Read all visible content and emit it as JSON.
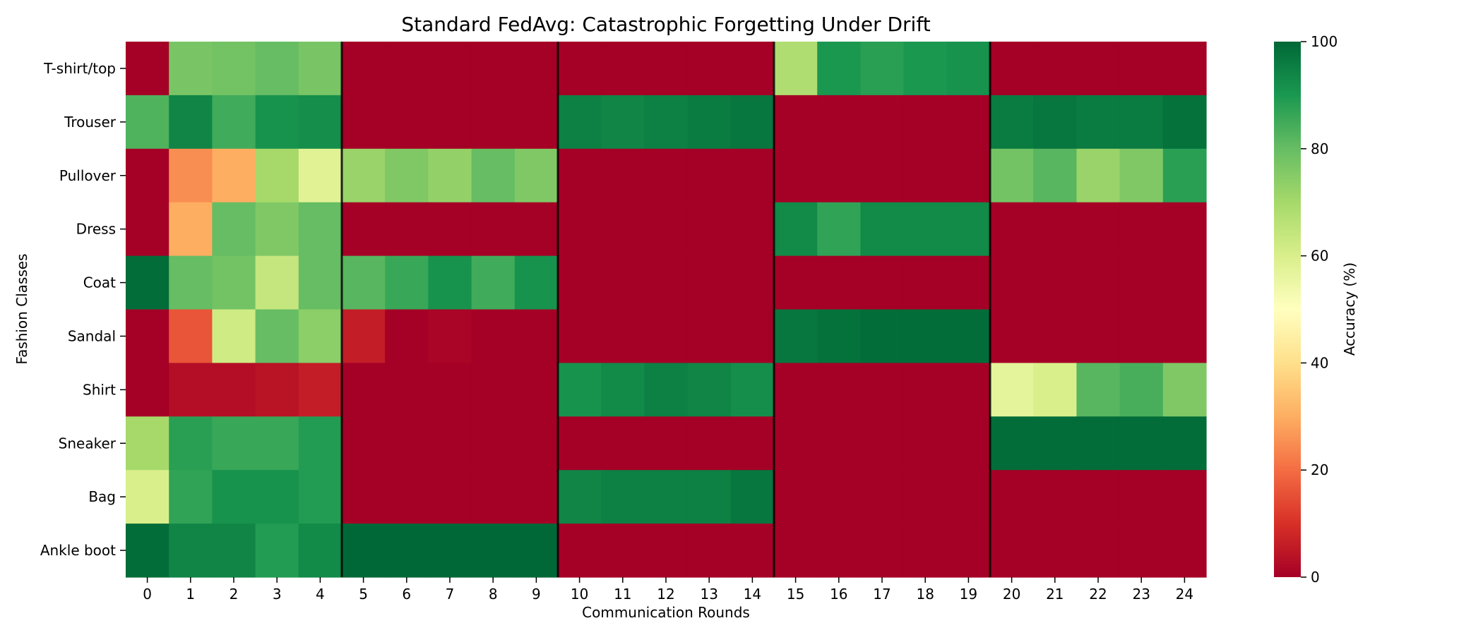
{
  "chart_data": {
    "type": "heatmap",
    "title": "Standard FedAvg: Catastrophic Forgetting Under Drift",
    "xlabel": "Communication Rounds",
    "ylabel": "Fashion Classes",
    "x": [
      "0",
      "1",
      "2",
      "3",
      "4",
      "5",
      "6",
      "7",
      "8",
      "9",
      "10",
      "11",
      "12",
      "13",
      "14",
      "15",
      "16",
      "17",
      "18",
      "19",
      "20",
      "21",
      "22",
      "23",
      "24"
    ],
    "y": [
      "T-shirt/top",
      "Trouser",
      "Pullover",
      "Dress",
      "Coat",
      "Sandal",
      "Shirt",
      "Sneaker",
      "Bag",
      "Ankle boot"
    ],
    "values": [
      [
        0,
        77,
        78,
        80,
        77,
        0,
        0,
        0,
        0,
        0,
        0,
        0,
        0,
        0,
        0,
        68,
        90,
        88,
        90,
        91,
        0,
        0,
        0,
        0,
        0
      ],
      [
        83,
        94,
        85,
        91,
        92,
        0,
        0,
        0,
        0,
        0,
        95,
        94,
        95,
        96,
        97,
        0,
        0,
        0,
        0,
        0,
        96,
        97,
        96,
        96,
        98
      ],
      [
        0,
        25,
        30,
        70,
        58,
        72,
        76,
        73,
        80,
        76,
        0,
        0,
        0,
        0,
        0,
        0,
        0,
        0,
        0,
        0,
        78,
        82,
        72,
        76,
        88
      ],
      [
        0,
        30,
        80,
        76,
        80,
        0,
        0,
        0,
        0,
        0,
        0,
        0,
        0,
        0,
        0,
        93,
        87,
        93,
        93,
        93,
        0,
        0,
        0,
        0,
        0
      ],
      [
        99,
        80,
        78,
        64,
        80,
        82,
        86,
        91,
        85,
        91,
        0,
        0,
        0,
        0,
        0,
        0,
        0,
        0,
        0,
        0,
        0,
        0,
        0,
        0,
        0
      ],
      [
        0,
        16,
        62,
        80,
        74,
        6,
        0,
        1,
        0,
        0,
        0,
        0,
        0,
        0,
        0,
        97,
        98,
        99,
        99,
        99,
        0,
        0,
        0,
        0,
        0
      ],
      [
        0,
        3,
        3,
        4,
        6,
        0,
        0,
        0,
        0,
        0,
        91,
        93,
        95,
        94,
        92,
        0,
        0,
        0,
        0,
        0,
        57,
        60,
        82,
        84,
        76
      ],
      [
        70,
        88,
        86,
        86,
        89,
        0,
        0,
        0,
        0,
        0,
        0,
        0,
        0,
        0,
        0,
        0,
        0,
        0,
        0,
        0,
        99,
        99,
        99,
        99,
        99
      ],
      [
        60,
        87,
        91,
        91,
        89,
        0,
        0,
        0,
        0,
        0,
        94,
        95,
        95,
        95,
        97,
        0,
        0,
        0,
        0,
        0,
        0,
        0,
        0,
        0,
        0
      ],
      [
        99,
        94,
        94,
        89,
        93,
        100,
        100,
        100,
        100,
        100,
        0,
        0,
        0,
        0,
        0,
        0,
        0,
        0,
        0,
        0,
        0,
        0,
        0,
        0,
        0
      ]
    ],
    "value_range": [
      0,
      100
    ],
    "colormap": "RdYlGn",
    "drift_boundaries_after_round": [
      4,
      9,
      14,
      19
    ],
    "colorbar": {
      "label": "Accuracy (%)",
      "ticks": [
        "0",
        "20",
        "40",
        "60",
        "80",
        "100"
      ]
    },
    "grid": false
  }
}
